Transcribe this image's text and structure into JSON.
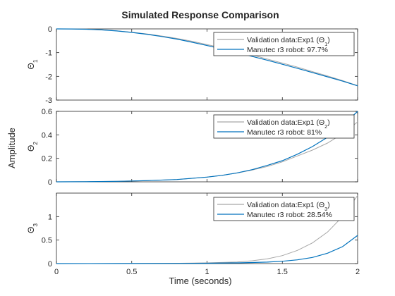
{
  "chart_data": {
    "type": "line",
    "title": "Simulated Response Comparison",
    "xlabel": "Time (seconds)",
    "shared_ylabel": "Amplitude",
    "xlim": [
      0,
      2
    ],
    "xticks": [
      "0",
      "0.5",
      "1",
      "1.5",
      "2"
    ],
    "colors": {
      "validation": "#a6a6a6",
      "model": "#0072bd",
      "axes": "#262626"
    },
    "panels": [
      {
        "ylabel": "Θ1",
        "ylim": [
          -3,
          0
        ],
        "yticks": [
          "0",
          "-1",
          "-2",
          "-3"
        ],
        "legend_loc": "top-right",
        "series": [
          {
            "name": "Validation  data:Exp1  (Θ1)",
            "x": [
              0,
              0.1,
              0.2,
              0.3,
              0.4,
              0.5,
              0.6,
              0.7,
              0.8,
              0.9,
              1.0,
              1.1,
              1.2,
              1.3,
              1.4,
              1.5,
              1.6,
              1.7,
              1.8,
              1.9,
              2.0
            ],
            "y": [
              0,
              -0.003,
              -0.013,
              -0.04,
              -0.08,
              -0.14,
              -0.21,
              -0.3,
              -0.4,
              -0.52,
              -0.66,
              -0.8,
              -0.95,
              -1.1,
              -1.27,
              -1.44,
              -1.61,
              -1.8,
              -1.98,
              -2.18,
              -2.39
            ]
          },
          {
            "name": "Manutec r3 robot: 97.7%",
            "x": [
              0,
              0.1,
              0.2,
              0.3,
              0.4,
              0.5,
              0.6,
              0.7,
              0.8,
              0.9,
              1.0,
              1.1,
              1.2,
              1.3,
              1.4,
              1.5,
              1.6,
              1.7,
              1.8,
              1.9,
              2.0
            ],
            "y": [
              0,
              -0.003,
              -0.014,
              -0.042,
              -0.085,
              -0.15,
              -0.225,
              -0.32,
              -0.43,
              -0.56,
              -0.7,
              -0.85,
              -1.0,
              -1.16,
              -1.32,
              -1.49,
              -1.66,
              -1.84,
              -2.02,
              -2.2,
              -2.4
            ]
          }
        ]
      },
      {
        "ylabel": "Θ2",
        "ylim": [
          0,
          0.6
        ],
        "yticks": [
          "0.6",
          "0.4",
          "0.2",
          "0"
        ],
        "legend_loc": "top-right",
        "series": [
          {
            "name": "Validation  data:Exp1  (Θ2)",
            "x": [
              0,
              0.2,
              0.4,
              0.6,
              0.8,
              1.0,
              1.1,
              1.2,
              1.3,
              1.4,
              1.5,
              1.6,
              1.7,
              1.8,
              1.9,
              2.0
            ],
            "y": [
              0,
              0.001,
              0.004,
              0.01,
              0.02,
              0.04,
              0.055,
              0.075,
              0.1,
              0.13,
              0.17,
              0.22,
              0.27,
              0.33,
              0.41,
              0.51
            ]
          },
          {
            "name": "Manutec r3 robot:  81%",
            "x": [
              0,
              0.2,
              0.4,
              0.6,
              0.8,
              1.0,
              1.1,
              1.2,
              1.3,
              1.4,
              1.5,
              1.6,
              1.7,
              1.8,
              1.9,
              2.0
            ],
            "y": [
              0,
              0.001,
              0.004,
              0.01,
              0.02,
              0.04,
              0.055,
              0.076,
              0.104,
              0.14,
              0.18,
              0.235,
              0.3,
              0.38,
              0.48,
              0.6
            ]
          }
        ]
      },
      {
        "ylabel": "Θ3",
        "ylim": [
          0,
          1.5
        ],
        "yticks": [
          "1",
          "0.5",
          "0"
        ],
        "legend_loc": "top-right",
        "series": [
          {
            "name": "Validation  data:Exp1  (Θ3)",
            "x": [
              0,
              0.4,
              0.8,
              1.0,
              1.2,
              1.3,
              1.4,
              1.5,
              1.6,
              1.7,
              1.8,
              1.9,
              2.0
            ],
            "y": [
              0,
              0.002,
              0.008,
              0.015,
              0.035,
              0.06,
              0.1,
              0.17,
              0.28,
              0.44,
              0.67,
              1.0,
              1.45
            ]
          },
          {
            "name": "Manutec r3 robot: 28.54%",
            "x": [
              0,
              0.4,
              0.8,
              1.0,
              1.2,
              1.3,
              1.4,
              1.5,
              1.6,
              1.7,
              1.8,
              1.9,
              2.0
            ],
            "y": [
              0,
              0.001,
              0.004,
              0.008,
              0.015,
              0.022,
              0.032,
              0.05,
              0.08,
              0.13,
              0.22,
              0.36,
              0.6
            ]
          }
        ]
      }
    ]
  }
}
